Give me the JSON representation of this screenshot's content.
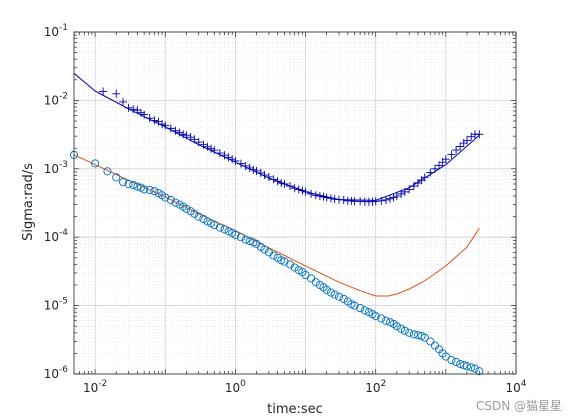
{
  "chart_data": {
    "type": "line",
    "title": "",
    "xlabel": "time:sec",
    "ylabel": "Sigma:rad/s",
    "xscale": "log",
    "yscale": "log",
    "xlim": [
      0.005,
      10000
    ],
    "ylim": [
      1e-06,
      0.1
    ],
    "grid": true,
    "minor_grid": true,
    "xticks": [
      0.01,
      1,
      100,
      10000
    ],
    "xtick_labels": [
      {
        "base": "10",
        "exp": "-2"
      },
      {
        "base": "10",
        "exp": "0"
      },
      {
        "base": "10",
        "exp": "2"
      },
      {
        "base": "10",
        "exp": "4"
      }
    ],
    "yticks": [
      1e-06,
      1e-05,
      0.0001,
      0.001,
      0.01,
      0.1
    ],
    "ytick_labels": [
      {
        "base": "10",
        "exp": "-6"
      },
      {
        "base": "10",
        "exp": "-5"
      },
      {
        "base": "10",
        "exp": "-4"
      },
      {
        "base": "10",
        "exp": "-3"
      },
      {
        "base": "10",
        "exp": "-2"
      },
      {
        "base": "10",
        "exp": "-1"
      }
    ],
    "series": [
      {
        "kind": "line",
        "color": "#0000aa",
        "x": [
          0.005,
          0.01,
          0.03,
          0.1,
          0.3,
          1,
          3,
          10,
          30,
          100,
          300,
          1000,
          3000
        ],
        "y": [
          0.025,
          0.0137,
          0.0075,
          0.0041,
          0.00225,
          0.00125,
          0.00073,
          0.00046,
          0.000355,
          0.000345,
          0.00053,
          0.00115,
          0.0031
        ]
      },
      {
        "kind": "markers",
        "marker": "plus",
        "color": "#0000aa",
        "x": [
          0.013,
          0.02,
          0.025,
          0.03,
          0.035,
          0.04,
          0.045,
          0.05,
          0.06,
          0.07,
          0.08,
          0.09,
          0.1,
          0.12,
          0.14,
          0.16,
          0.18,
          0.2,
          0.23,
          0.26,
          0.3,
          0.35,
          0.4,
          0.45,
          0.5,
          0.6,
          0.7,
          0.8,
          0.9,
          1,
          1.2,
          1.4,
          1.6,
          1.8,
          2,
          2.3,
          2.6,
          3,
          3.5,
          4,
          4.5,
          5,
          6,
          7,
          8,
          9,
          10,
          12,
          14,
          16,
          18,
          20,
          23,
          26,
          30,
          35,
          40,
          45,
          50,
          60,
          70,
          80,
          90,
          100,
          120,
          140,
          160,
          180,
          200,
          230,
          260,
          300,
          350,
          400,
          450,
          500,
          600,
          700,
          800,
          900,
          1000,
          1200,
          1400,
          1600,
          1800,
          2000,
          2300,
          2600,
          3000
        ],
        "y": [
          0.0135,
          0.0125,
          0.0095,
          0.0078,
          0.0074,
          0.0072,
          0.0066,
          0.0062,
          0.0055,
          0.0051,
          0.0049,
          0.0045,
          0.0043,
          0.0039,
          0.0036,
          0.0034,
          0.0032,
          0.0031,
          0.0029,
          0.0027,
          0.00245,
          0.00225,
          0.0021,
          0.00197,
          0.00187,
          0.0017,
          0.00158,
          0.00147,
          0.00138,
          0.0013,
          0.00119,
          0.0011,
          0.00103,
          0.00097,
          0.00093,
          0.00087,
          0.00081,
          0.00076,
          0.0007,
          0.00066,
          0.00062,
          0.0006,
          0.00056,
          0.00052,
          0.0005,
          0.00048,
          0.00046,
          0.00043,
          0.00041,
          0.0004,
          0.00039,
          0.00038,
          0.00037,
          0.00036,
          0.000355,
          0.00035,
          0.00034,
          0.00034,
          0.000335,
          0.000335,
          0.00033,
          0.00033,
          0.00033,
          0.000335,
          0.00034,
          0.00035,
          0.000365,
          0.00038,
          0.0004,
          0.00043,
          0.00046,
          0.0005,
          0.00056,
          0.00062,
          0.00068,
          0.00075,
          0.00088,
          0.001,
          0.00112,
          0.00125,
          0.00138,
          0.00162,
          0.00188,
          0.00212,
          0.00238,
          0.0026,
          0.00295,
          0.0032,
          0.0032
        ]
      },
      {
        "kind": "line",
        "color": "#d95319",
        "x": [
          0.005,
          0.01,
          0.03,
          0.1,
          0.3,
          1,
          3,
          10,
          30,
          60,
          100,
          150,
          200,
          300,
          500,
          1000,
          2000,
          3000
        ],
        "y": [
          0.0016,
          0.00115,
          0.00068,
          0.00039,
          0.00022,
          0.000125,
          7e-05,
          3.8e-05,
          2.2e-05,
          1.65e-05,
          1.38e-05,
          1.38e-05,
          1.48e-05,
          1.75e-05,
          2.3e-05,
          3.8e-05,
          7.2e-05,
          0.000135
        ]
      },
      {
        "kind": "markers",
        "marker": "circle",
        "color": "#0072bd",
        "x": [
          0.005,
          0.01,
          0.015,
          0.02,
          0.025,
          0.03,
          0.035,
          0.04,
          0.045,
          0.05,
          0.06,
          0.07,
          0.08,
          0.09,
          0.1,
          0.12,
          0.14,
          0.16,
          0.18,
          0.2,
          0.23,
          0.26,
          0.3,
          0.35,
          0.4,
          0.45,
          0.5,
          0.6,
          0.7,
          0.8,
          0.9,
          1,
          1.2,
          1.4,
          1.6,
          1.8,
          2,
          2.3,
          2.6,
          3,
          3.5,
          4,
          4.5,
          5,
          6,
          7,
          8,
          9,
          10,
          12,
          14,
          16,
          18,
          20,
          23,
          26,
          30,
          35,
          40,
          45,
          50,
          60,
          70,
          80,
          90,
          100,
          120,
          140,
          160,
          180,
          200,
          230,
          260,
          300,
          350,
          400,
          450,
          500,
          600,
          700,
          800,
          900,
          1000,
          1200,
          1400,
          1600,
          1800,
          2000,
          2300,
          2600,
          3000
        ],
        "y": [
          0.0016,
          0.0012,
          0.00092,
          0.00075,
          0.00064,
          0.0006,
          0.00058,
          0.00055,
          0.00053,
          0.0005,
          0.00049,
          0.00047,
          0.00044,
          0.00041,
          0.00038,
          0.00035,
          0.00032,
          0.0003,
          0.00028,
          0.00026,
          0.00024,
          0.00022,
          0.0002,
          0.000185,
          0.00017,
          0.00016,
          0.00015,
          0.000138,
          0.00013,
          0.000122,
          0.000115,
          0.000108,
          0.0001,
          9.2e-05,
          8.8e-05,
          8.4e-05,
          8e-05,
          7.2e-05,
          6.6e-05,
          6e-05,
          5.4e-05,
          5e-05,
          4.6e-05,
          4.4e-05,
          4e-05,
          3.6e-05,
          3.3e-05,
          3.1e-05,
          2.8e-05,
          2.5e-05,
          2.2e-05,
          2e-05,
          1.85e-05,
          1.7e-05,
          1.55e-05,
          1.45e-05,
          1.35e-05,
          1.25e-05,
          1.15e-05,
          1.05e-05,
          1e-05,
          9.2e-06,
          8.5e-06,
          8e-06,
          7.5e-06,
          7e-06,
          6.5e-06,
          6e-06,
          5.7e-06,
          5.4e-06,
          5e-06,
          4.6e-06,
          4.3e-06,
          4e-06,
          3.8e-06,
          3.7e-06,
          3.6e-06,
          3.4e-06,
          3e-06,
          2.6e-06,
          2.3e-06,
          2e-06,
          1.8e-06,
          1.6e-06,
          1.5e-06,
          1.4e-06,
          1.35e-06,
          1.3e-06,
          1.25e-06,
          1.2e-06,
          1.1e-06
        ]
      }
    ]
  },
  "watermark": "CSDN @猫星星"
}
